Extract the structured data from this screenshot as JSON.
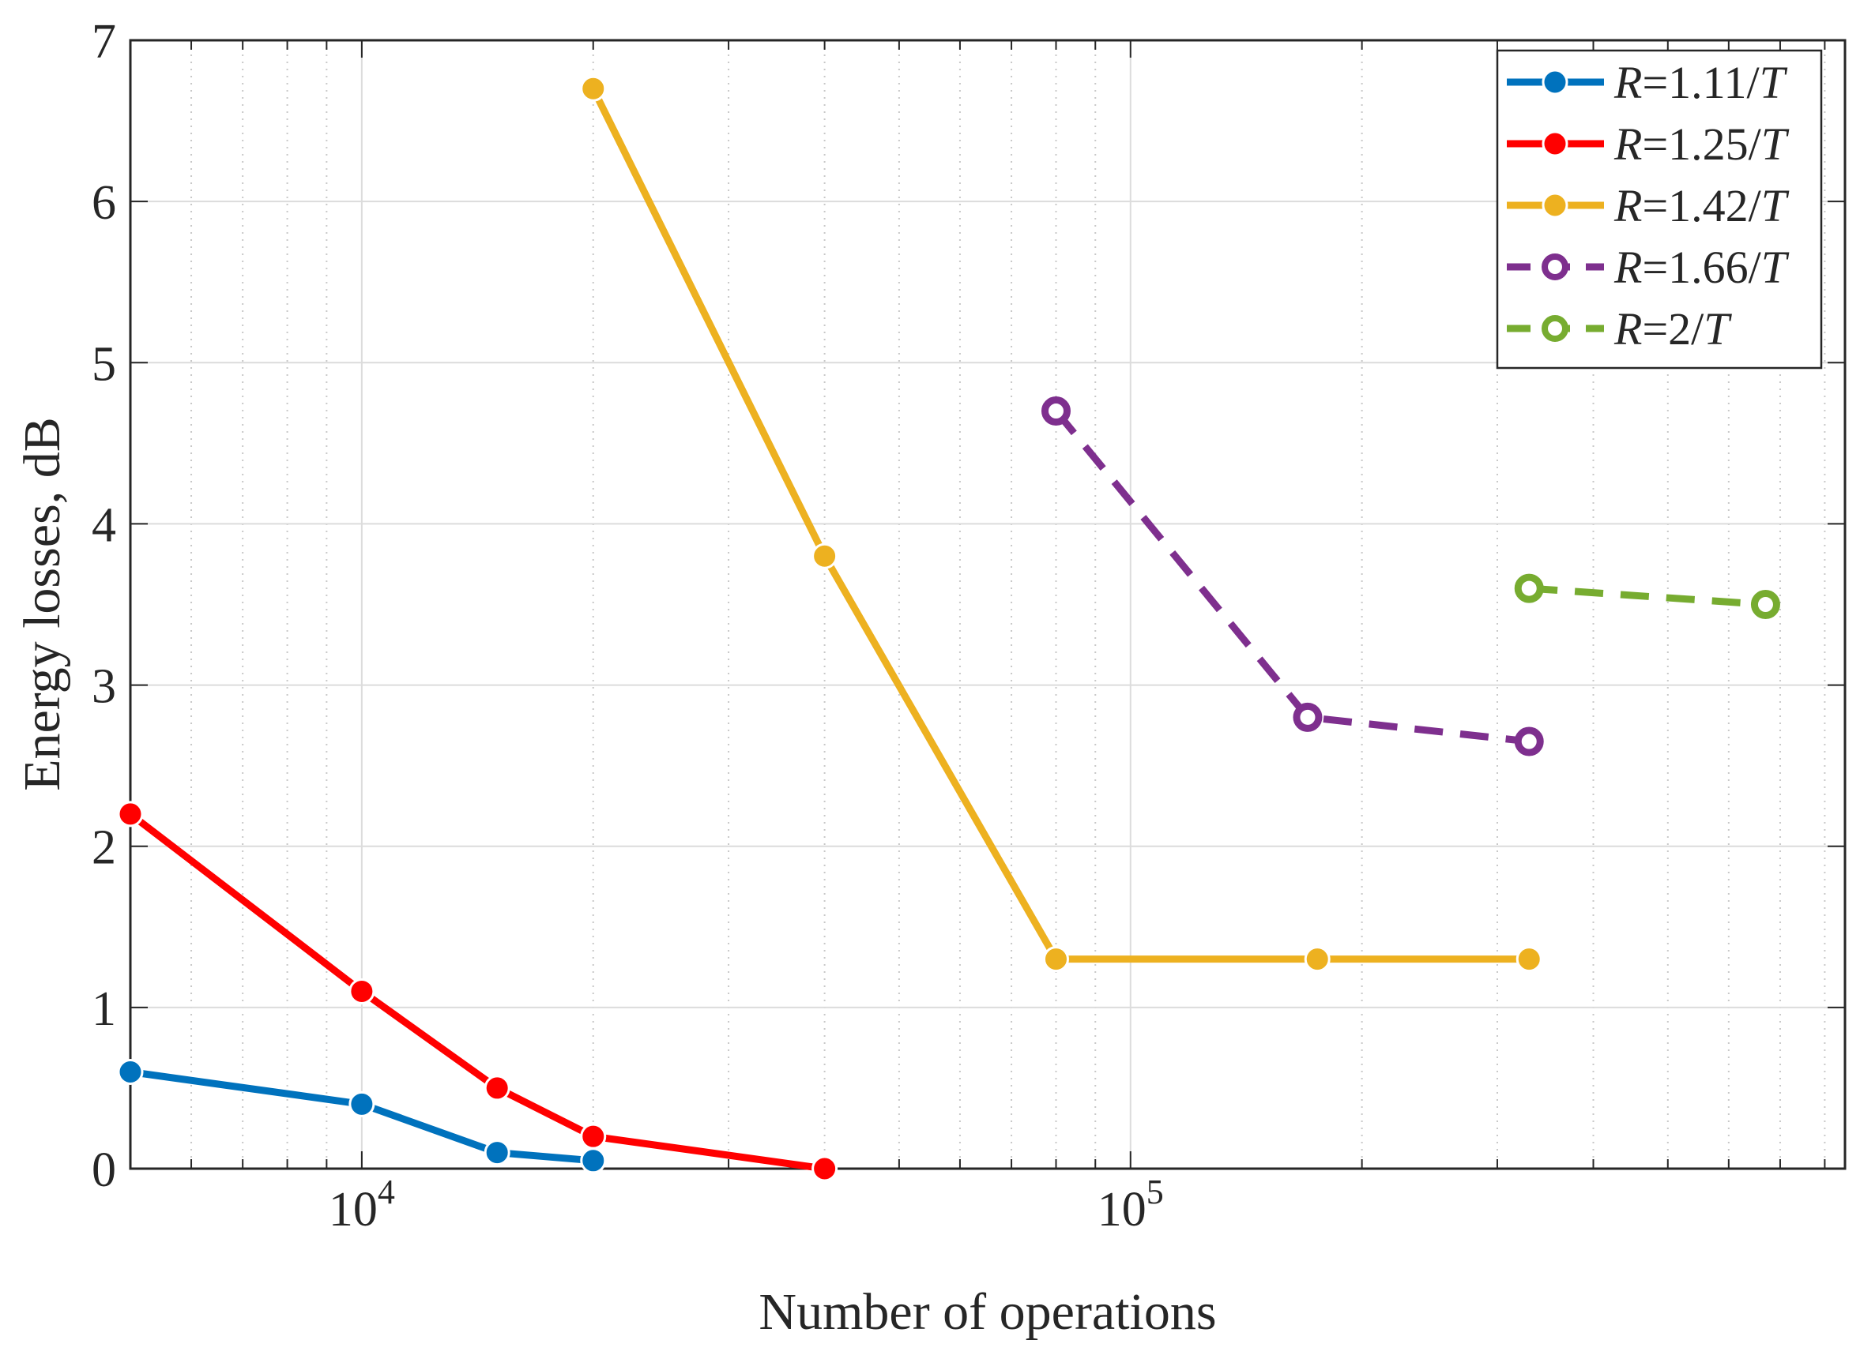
{
  "chart_data": {
    "type": "line",
    "title": "",
    "xlabel": "Number of operations",
    "ylabel": "Energy losses, dB",
    "xscale": "log",
    "xlim": [
      5000,
      850000
    ],
    "ylim": [
      0,
      7
    ],
    "yticks": [
      0,
      1,
      2,
      3,
      4,
      5,
      6,
      7
    ],
    "xticks": [
      {
        "value": 10000,
        "base": "10",
        "exp": "4"
      },
      {
        "value": 100000,
        "base": "10",
        "exp": "5"
      }
    ],
    "grid": true,
    "legend_position": "top-right",
    "series": [
      {
        "name": "R=1.11/T",
        "label_var": "R",
        "label_mid": "=1.11/",
        "label_unit": "T",
        "color": "#0072BD",
        "dashed": false,
        "marker": "filled",
        "x": [
          5000,
          10000,
          15000,
          20000
        ],
        "y": [
          0.6,
          0.4,
          0.1,
          0.05
        ]
      },
      {
        "name": "R=1.25/T",
        "label_var": "R",
        "label_mid": "=1.25/",
        "label_unit": "T",
        "color": "#FF0000",
        "dashed": false,
        "marker": "filled",
        "x": [
          5000,
          10000,
          15000,
          20000,
          40000
        ],
        "y": [
          2.2,
          1.1,
          0.5,
          0.2,
          0.0
        ]
      },
      {
        "name": "R=1.42/T",
        "label_var": "R",
        "label_mid": "=1.42/",
        "label_unit": "T",
        "color": "#EDB120",
        "dashed": false,
        "marker": "filled",
        "x": [
          20000,
          40000,
          80000,
          175000,
          330000
        ],
        "y": [
          6.7,
          3.8,
          1.3,
          1.3,
          1.3
        ]
      },
      {
        "name": "R=1.66/T",
        "label_var": "R",
        "label_mid": "=1.66/",
        "label_unit": "T",
        "color": "#7E2F8E",
        "dashed": true,
        "marker": "ring",
        "x": [
          80000,
          170000,
          330000
        ],
        "y": [
          4.7,
          2.8,
          2.65
        ]
      },
      {
        "name": "R=2/T",
        "label_var": "R",
        "label_mid": "=2/",
        "label_unit": "T",
        "color": "#77AC30",
        "dashed": true,
        "marker": "ring",
        "x": [
          330000,
          670000
        ],
        "y": [
          3.6,
          3.5
        ]
      }
    ]
  }
}
